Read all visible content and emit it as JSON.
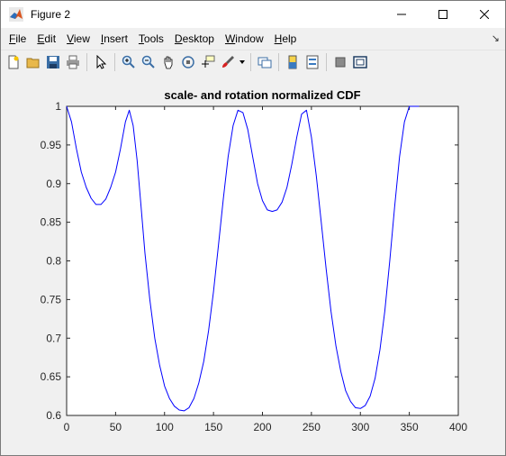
{
  "window": {
    "title": "Figure 2"
  },
  "menu": [
    "File",
    "Edit",
    "View",
    "Insert",
    "Tools",
    "Desktop",
    "Window",
    "Help"
  ],
  "menu_underline": [
    "F",
    "E",
    "V",
    "I",
    "T",
    "D",
    "W",
    "H"
  ],
  "toolbar_icons": [
    "new-figure-icon",
    "open-file-icon",
    "save-icon",
    "print-icon",
    "edit-plot-arrow-icon",
    "zoom-in-icon",
    "zoom-out-icon",
    "pan-hand-icon",
    "rotate-3d-icon",
    "data-cursor-icon",
    "brush-icon",
    "brush-dropdown-icon",
    "link-plot-icon",
    "insert-colorbar-icon",
    "insert-legend-icon",
    "hide-plot-tools-icon",
    "show-plot-tools-icon"
  ],
  "chart_data": {
    "type": "line",
    "title": "scale- and rotation normalized CDF",
    "xlabel": "",
    "ylabel": "",
    "xlim": [
      0,
      400
    ],
    "ylim": [
      0.6,
      1.0
    ],
    "xticks": [
      "0",
      "50",
      "100",
      "150",
      "200",
      "250",
      "300",
      "350",
      "400"
    ],
    "yticks": [
      "0.6",
      "0.65",
      "0.7",
      "0.75",
      "0.8",
      "0.85",
      "0.9",
      "0.95",
      "1"
    ],
    "grid": false,
    "series": [
      {
        "color": "#0000ff",
        "x": [
          0,
          5,
          10,
          15,
          20,
          25,
          30,
          35,
          40,
          45,
          50,
          55,
          60,
          64,
          68,
          72,
          76,
          80,
          85,
          90,
          95,
          100,
          105,
          110,
          115,
          120,
          125,
          130,
          135,
          140,
          145,
          150,
          155,
          160,
          165,
          170,
          175,
          180,
          185,
          190,
          195,
          200,
          205,
          210,
          215,
          220,
          225,
          230,
          235,
          240,
          245,
          250,
          255,
          260,
          265,
          270,
          275,
          280,
          285,
          290,
          295,
          300,
          305,
          310,
          315,
          320,
          325,
          330,
          335,
          340,
          345,
          350,
          355,
          360
        ],
        "y": [
          1.0,
          0.98,
          0.945,
          0.915,
          0.895,
          0.881,
          0.873,
          0.873,
          0.88,
          0.895,
          0.915,
          0.945,
          0.98,
          0.995,
          0.975,
          0.93,
          0.87,
          0.81,
          0.75,
          0.7,
          0.665,
          0.638,
          0.622,
          0.612,
          0.607,
          0.606,
          0.61,
          0.622,
          0.642,
          0.67,
          0.71,
          0.76,
          0.82,
          0.88,
          0.935,
          0.975,
          0.995,
          0.992,
          0.97,
          0.935,
          0.9,
          0.878,
          0.866,
          0.864,
          0.866,
          0.876,
          0.895,
          0.925,
          0.96,
          0.99,
          0.995,
          0.96,
          0.91,
          0.85,
          0.79,
          0.735,
          0.69,
          0.657,
          0.632,
          0.618,
          0.61,
          0.609,
          0.613,
          0.625,
          0.648,
          0.685,
          0.735,
          0.8,
          0.87,
          0.935,
          0.98,
          1.0,
          1.0,
          1.0
        ]
      }
    ]
  }
}
